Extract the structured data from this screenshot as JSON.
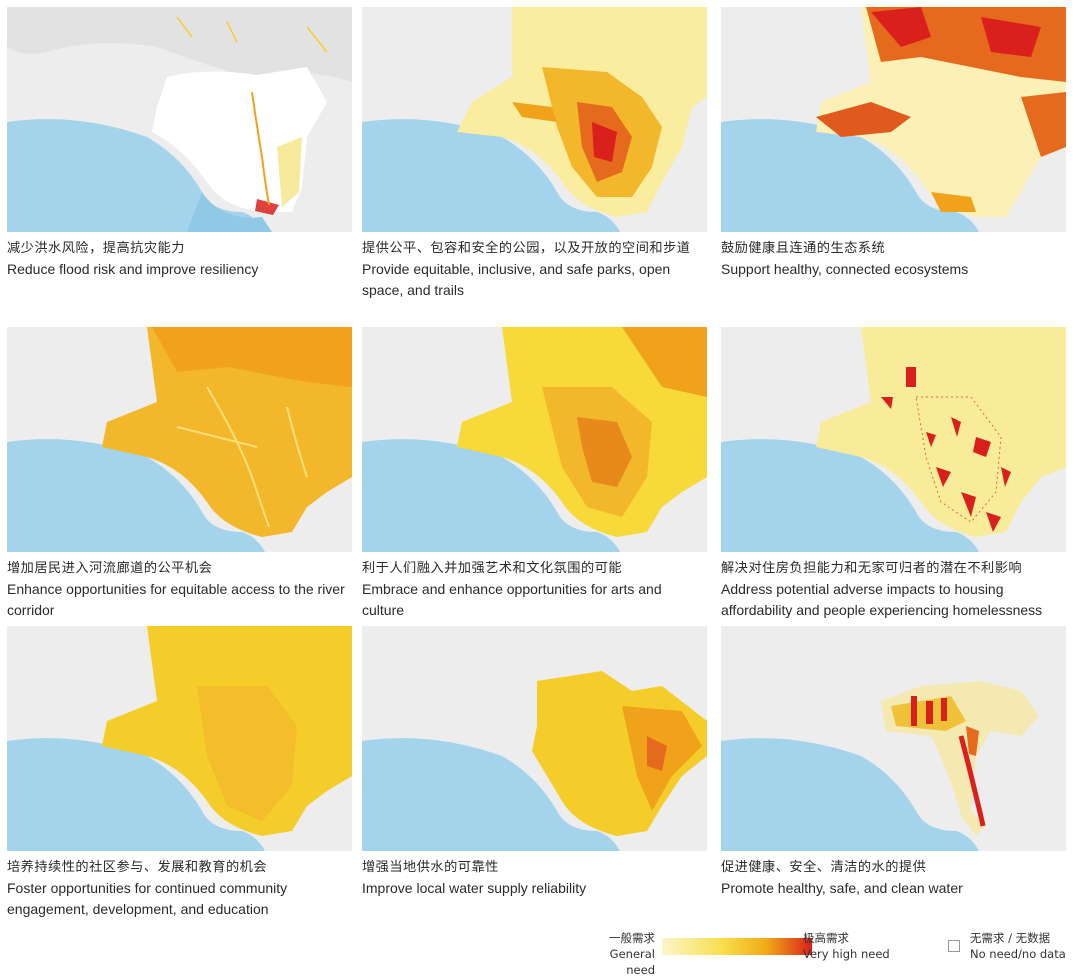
{
  "panels": [
    {
      "zh": "减少洪水风险，提高抗灾能力",
      "en": "Reduce flood risk and improve resiliency"
    },
    {
      "zh": "提供公平、包容和安全的公园，以及开放的空间和步道",
      "en": "Provide equitable, inclusive, and safe parks, open space, and trails"
    },
    {
      "zh": "鼓励健康且连通的生态系统",
      "en": "Support healthy, connected ecosystems"
    },
    {
      "zh": "增加居民进入河流廊道的公平机会",
      "en": "Enhance opportunities for equitable access to the river corridor"
    },
    {
      "zh": "利于人们融入并加强艺术和文化氛围的可能",
      "en": "Embrace and enhance opportunities for arts and culture"
    },
    {
      "zh": "解决对住房负担能力和无家可归者的潜在不利影响",
      "en": "Address potential adverse impacts to housing affordability and people experiencing homelessness"
    },
    {
      "zh": "培养持续性的社区参与、发展和教育的机会",
      "en": "Foster opportunities for continued community engagement, development, and education"
    },
    {
      "zh": "增强当地供水的可靠性",
      "en": "Improve local water supply reliability"
    },
    {
      "zh": "促进健康、安全、清洁的水的提供",
      "en": "Promote healthy, safe, and clean water"
    }
  ],
  "legend": {
    "general_zh": "一般需求",
    "general_en": "General need",
    "high_zh": "极高需求",
    "high_en": "Very high need",
    "none_zh": "无需求 / 无数据",
    "none_en": "No need/no data"
  },
  "colors": {
    "ocean": "#9fd2ea",
    "land": "#eeeeee",
    "low": "#fbf3b8",
    "mid": "#f5cd2a",
    "orange": "#f0a21a",
    "high": "#d9201c"
  }
}
